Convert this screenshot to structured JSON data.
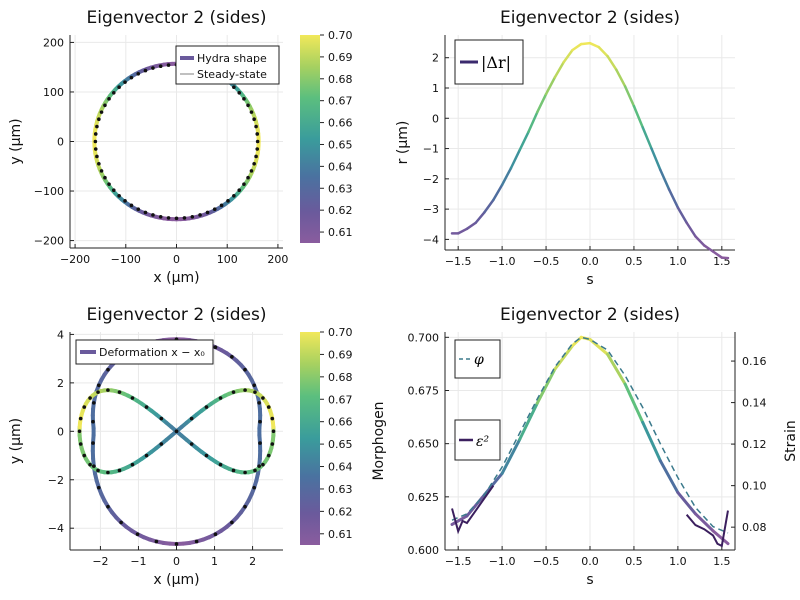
{
  "chart_data": [
    {
      "id": "p1",
      "type": "line",
      "title": "Eigenvector 2 (sides)",
      "xlabel": "x (μm)",
      "ylabel": "y (μm)",
      "xlim": [
        -210,
        210
      ],
      "ylim": [
        -215,
        215
      ],
      "xticks": [
        -200,
        -100,
        0,
        100,
        200
      ],
      "yticks": [
        -200,
        -100,
        0,
        100,
        200
      ],
      "grid": true,
      "legend": {
        "placement": "top-right",
        "entries": [
          "Hydra shape",
          "Steady-state"
        ]
      },
      "series": [
        {
          "name": "Hydra shape",
          "kind": "ellipse",
          "rx": 162,
          "ry": 157,
          "colored_by": "morphogen"
        },
        {
          "name": "Steady-state",
          "kind": "ellipse",
          "rx": 160,
          "ry": 155,
          "style": "dots"
        }
      ],
      "colorbar": {
        "min": 0.605,
        "max": 0.7,
        "ticks": [
          "0.61",
          "0.62",
          "0.63",
          "0.64",
          "0.65",
          "0.66",
          "0.67",
          "0.68",
          "0.69",
          "0.70"
        ]
      }
    },
    {
      "id": "p2",
      "type": "line",
      "title": "Eigenvector 2 (sides)",
      "xlabel": "s",
      "ylabel": "r (μm)",
      "xlim": [
        -1.65,
        1.65
      ],
      "ylim": [
        -4.35,
        2.75
      ],
      "xticks": [
        "-1.5",
        "-1.0",
        "-0.5",
        "0.0",
        "0.5",
        "1.0",
        "1.5"
      ],
      "yticks": [
        "2",
        "1",
        "0",
        "-1",
        "-2",
        "-3",
        "-4"
      ],
      "grid": true,
      "legend": {
        "placement": "top-left",
        "entries": [
          "|Δr|"
        ]
      },
      "series": [
        {
          "name": "|Δr|",
          "x": [
            -1.57,
            -1.5,
            -1.4,
            -1.3,
            -1.2,
            -1.1,
            -1.0,
            -0.9,
            -0.8,
            -0.7,
            -0.6,
            -0.5,
            -0.4,
            -0.3,
            -0.2,
            -0.1,
            0.0,
            0.1,
            0.2,
            0.3,
            0.4,
            0.5,
            0.6,
            0.7,
            0.8,
            0.9,
            1.0,
            1.1,
            1.2,
            1.3,
            1.4,
            1.5,
            1.57
          ],
          "y": [
            -3.8,
            -3.8,
            -3.65,
            -3.45,
            -3.1,
            -2.7,
            -2.2,
            -1.65,
            -1.05,
            -0.45,
            0.2,
            0.8,
            1.35,
            1.85,
            2.25,
            2.45,
            2.48,
            2.35,
            2.05,
            1.6,
            1.05,
            0.4,
            -0.3,
            -1.0,
            -1.7,
            -2.35,
            -2.95,
            -3.45,
            -3.9,
            -4.2,
            -4.4,
            -4.6,
            -4.62
          ]
        }
      ]
    },
    {
      "id": "p3",
      "type": "line",
      "title": "Eigenvector 2 (sides)",
      "xlabel": "x (μm)",
      "ylabel": "y (μm)",
      "xlim": [
        -2.8,
        2.8
      ],
      "ylim": [
        -4.9,
        4.1
      ],
      "xticks": [
        -2,
        -1,
        0,
        1,
        2
      ],
      "yticks": [
        4,
        2,
        0,
        -2,
        -4
      ],
      "grid": true,
      "legend": {
        "placement": "top-left",
        "entries": [
          "Deformation x − x₀"
        ]
      },
      "series": [
        {
          "name": "Deformation x − x₀",
          "kind": "outer-loop",
          "top": 3.8,
          "bottom": -4.65,
          "halfwidth": 2.55
        },
        {
          "kind": "figure-eight",
          "a": 2.55,
          "b": 1.7
        }
      ],
      "colorbar": {
        "min": 0.605,
        "max": 0.7,
        "ticks": [
          "0.61",
          "0.62",
          "0.63",
          "0.64",
          "0.65",
          "0.66",
          "0.67",
          "0.68",
          "0.69",
          "0.70"
        ]
      }
    },
    {
      "id": "p4",
      "type": "line",
      "title": "Eigenvector 2 (sides)",
      "xlabel": "s",
      "ylabel": "Morphogen",
      "ylabel2": "Strain",
      "xlim": [
        -1.65,
        1.65
      ],
      "ylim": [
        0.6,
        0.7025
      ],
      "ylim2": [
        0.069,
        0.174
      ],
      "xticks": [
        "-1.5",
        "-1.0",
        "-0.5",
        "0.0",
        "0.5",
        "1.0",
        "1.5"
      ],
      "yticks": [
        "0.700",
        "0.675",
        "0.650",
        "0.625",
        "0.600"
      ],
      "yticks2": [
        "0.16",
        "0.14",
        "0.12",
        "0.10",
        "0.08"
      ],
      "grid": true,
      "legend": {
        "placement": "left",
        "entries": [
          "φ",
          "ε²"
        ]
      },
      "series": [
        {
          "name": "φ",
          "x": [
            -1.57,
            -1.4,
            -1.2,
            -1.0,
            -0.8,
            -0.6,
            -0.4,
            -0.2,
            -0.1,
            0.0,
            0.2,
            0.4,
            0.6,
            0.8,
            1.0,
            1.2,
            1.4,
            1.57
          ],
          "y": [
            0.614,
            0.617,
            0.626,
            0.639,
            0.655,
            0.671,
            0.686,
            0.697,
            0.7,
            0.699,
            0.694,
            0.682,
            0.667,
            0.65,
            0.634,
            0.62,
            0.611,
            0.608
          ]
        },
        {
          "name": "Morphogen",
          "x": [
            -1.57,
            -1.4,
            -1.2,
            -1.0,
            -0.8,
            -0.6,
            -0.4,
            -0.2,
            -0.1,
            0.0,
            0.2,
            0.4,
            0.6,
            0.8,
            1.0,
            1.2,
            1.4,
            1.57
          ],
          "y": [
            0.612,
            0.616,
            0.626,
            0.636,
            0.652,
            0.669,
            0.685,
            0.696,
            0.7,
            0.699,
            0.692,
            0.678,
            0.66,
            0.642,
            0.627,
            0.617,
            0.609,
            0.603
          ]
        },
        {
          "name": "ε²",
          "axis": "right",
          "x": [
            -1.57,
            -1.5,
            -1.45,
            -1.4,
            -1.3,
            -1.2,
            -1.1,
            1.1,
            1.2,
            1.3,
            1.4,
            1.45,
            1.5,
            1.57
          ],
          "y": [
            0.089,
            0.078,
            0.083,
            0.082,
            0.088,
            0.094,
            0.1,
            0.086,
            0.081,
            0.079,
            0.076,
            0.072,
            0.071,
            0.088
          ]
        }
      ]
    }
  ]
}
